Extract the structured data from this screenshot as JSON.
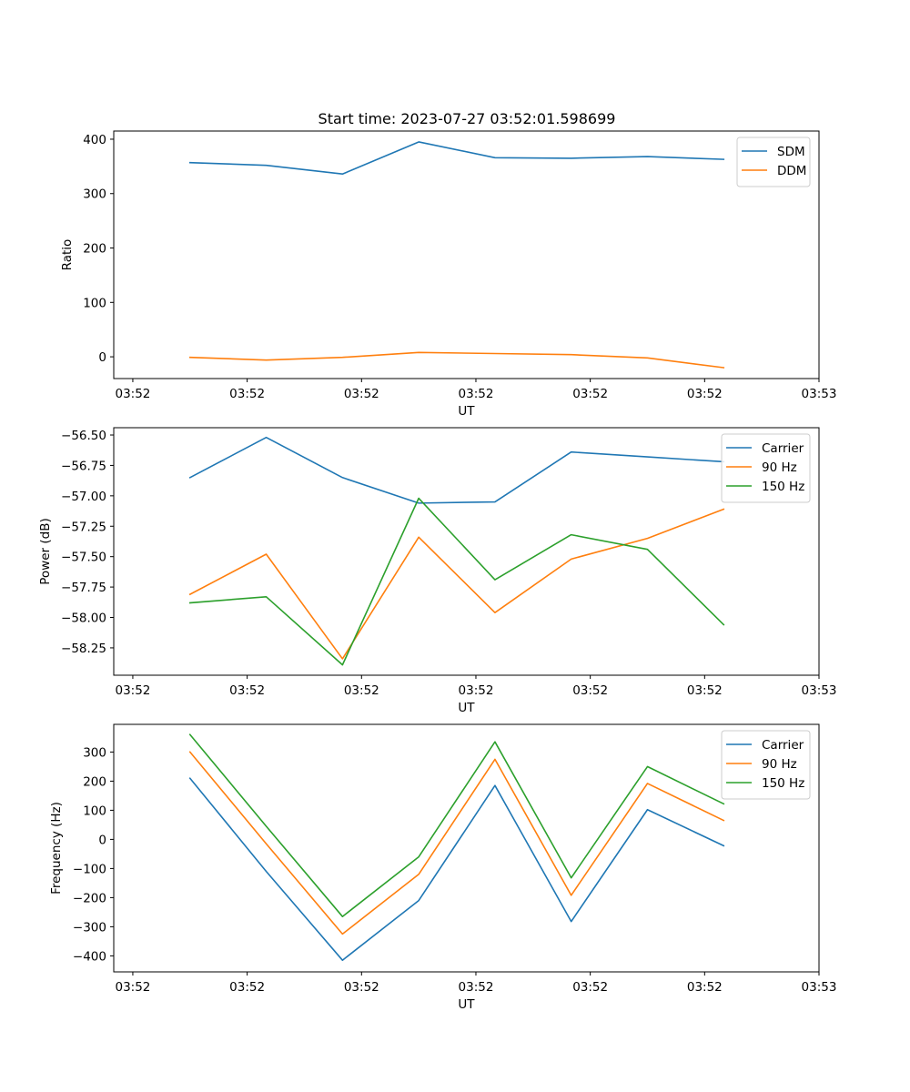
{
  "figure": {
    "title": "Start time: 2023-07-27 03:52:01.598699"
  },
  "chart_data": [
    {
      "type": "line",
      "ylabel": "Ratio",
      "xlabel": "UT",
      "xlim": [
        0,
        9.25
      ],
      "ylim": [
        -40,
        415
      ],
      "x": [
        1,
        2,
        3,
        4,
        5,
        6,
        7,
        8
      ],
      "xticks": [
        0.25,
        1.75,
        3.25,
        4.75,
        6.25,
        7.75,
        9.25
      ],
      "xtick_labels": [
        "03:52",
        "03:52",
        "03:52",
        "03:52",
        "03:52",
        "03:52",
        "03:53"
      ],
      "yticks": [
        0,
        100,
        200,
        300,
        400
      ],
      "ytick_labels": [
        "0",
        "100",
        "200",
        "300",
        "400"
      ],
      "series": [
        {
          "name": "SDM",
          "color": "#1f77b4",
          "values": [
            357,
            352,
            336,
            395,
            366,
            365,
            368,
            363
          ]
        },
        {
          "name": "DDM",
          "color": "#ff7f0e",
          "values": [
            -1,
            -6,
            -1,
            8,
            6,
            4,
            -2,
            -20
          ]
        }
      ]
    },
    {
      "type": "line",
      "ylabel": "Power (dB)",
      "xlabel": "UT",
      "xlim": [
        0,
        9.25
      ],
      "ylim": [
        -58.475,
        -56.44
      ],
      "x": [
        1,
        2,
        3,
        4,
        5,
        6,
        7,
        8
      ],
      "xticks": [
        0.25,
        1.75,
        3.25,
        4.75,
        6.25,
        7.75,
        9.25
      ],
      "xtick_labels": [
        "03:52",
        "03:52",
        "03:52",
        "03:52",
        "03:52",
        "03:52",
        "03:53"
      ],
      "yticks": [
        -56.5,
        -56.75,
        -57.0,
        -57.25,
        -57.5,
        -57.75,
        -58.0,
        -58.25
      ],
      "ytick_labels": [
        "−56.50",
        "−56.75",
        "−57.00",
        "−57.25",
        "−57.50",
        "−57.75",
        "−58.00",
        "−58.25"
      ],
      "series": [
        {
          "name": "Carrier",
          "color": "#1f77b4",
          "values": [
            -56.85,
            -56.52,
            -56.85,
            -57.06,
            -57.05,
            -56.64,
            -56.68,
            -56.72
          ]
        },
        {
          "name": "90 Hz",
          "color": "#ff7f0e",
          "values": [
            -57.81,
            -57.48,
            -58.34,
            -57.34,
            -57.96,
            -57.52,
            -57.35,
            -57.11
          ]
        },
        {
          "name": "150 Hz",
          "color": "#2ca02c",
          "values": [
            -57.88,
            -57.83,
            -58.39,
            -57.02,
            -57.69,
            -57.32,
            -57.44,
            -58.06
          ]
        }
      ]
    },
    {
      "type": "line",
      "ylabel": "Frequency (Hz)",
      "xlabel": "UT",
      "xlim": [
        0,
        9.25
      ],
      "ylim": [
        -455,
        395
      ],
      "x": [
        1,
        2,
        3,
        4,
        5,
        6,
        7,
        8
      ],
      "xticks": [
        0.25,
        1.75,
        3.25,
        4.75,
        6.25,
        7.75,
        9.25
      ],
      "xtick_labels": [
        "03:52",
        "03:52",
        "03:52",
        "03:52",
        "03:52",
        "03:52",
        "03:53"
      ],
      "yticks": [
        300,
        200,
        100,
        0,
        -100,
        -200,
        -300,
        -400
      ],
      "ytick_labels": [
        "300",
        "200",
        "100",
        "0",
        "−100",
        "−200",
        "−300",
        "−400"
      ],
      "series": [
        {
          "name": "Carrier",
          "color": "#1f77b4",
          "values": [
            210,
            -110,
            -415,
            -210,
            185,
            -282,
            102,
            -22
          ]
        },
        {
          "name": "90 Hz",
          "color": "#ff7f0e",
          "values": [
            300,
            -15,
            -325,
            -120,
            275,
            -192,
            192,
            65
          ]
        },
        {
          "name": "150 Hz",
          "color": "#2ca02c",
          "values": [
            360,
            45,
            -265,
            -60,
            335,
            -132,
            250,
            122
          ]
        }
      ]
    }
  ]
}
